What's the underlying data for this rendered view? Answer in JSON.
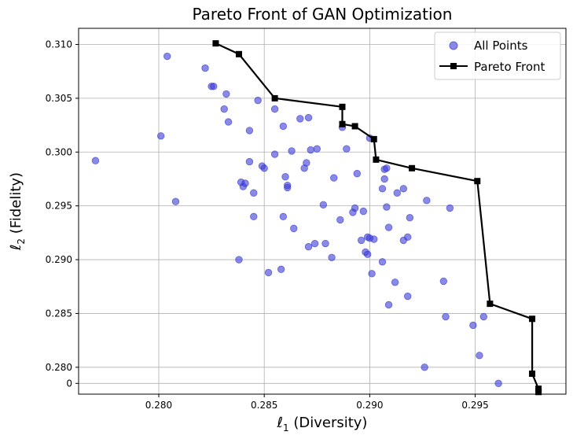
{
  "chart_data": {
    "type": "scatter",
    "title": "Pareto Front of GAN Optimization",
    "xlabel": "ℓ1 (Diversity)",
    "ylabel": "ℓ2 (Fidelity)",
    "xlabel_parts": {
      "symbol": "ℓ",
      "sub": "1",
      "rest": " (Diversity)"
    },
    "ylabel_parts": {
      "symbol": "ℓ",
      "sub": "2",
      "rest": " (Fidelity)"
    },
    "xlim": [
      0.2762,
      0.2993
    ],
    "y_break": {
      "below_label": 0.279,
      "at": 0.0
    },
    "ylim": [
      0.2775,
      0.3115
    ],
    "grid": true,
    "legend_position": "top-right",
    "x_ticks": [
      "0.280",
      "0.285",
      "0.290",
      "0.295"
    ],
    "x_tick_values": [
      0.28,
      0.285,
      0.29,
      0.295
    ],
    "y_ticks": [
      "0",
      "0.280",
      "0.285",
      "0.290",
      "0.295",
      "0.300",
      "0.305",
      "0.310"
    ],
    "y_tick_values": [
      0.2785,
      0.28,
      0.285,
      0.29,
      0.295,
      0.3,
      0.305,
      0.31
    ],
    "series": [
      {
        "name": "All Points",
        "kind": "scatter",
        "color": "#3b3bd6",
        "points": [
          [
            0.277,
            0.2992
          ],
          [
            0.2801,
            0.3015
          ],
          [
            0.2804,
            0.3089
          ],
          [
            0.2808,
            0.2954
          ],
          [
            0.2822,
            0.3078
          ],
          [
            0.2825,
            0.3061
          ],
          [
            0.2826,
            0.3061
          ],
          [
            0.2831,
            0.304
          ],
          [
            0.2832,
            0.3054
          ],
          [
            0.2833,
            0.3028
          ],
          [
            0.2838,
            0.29
          ],
          [
            0.2839,
            0.2972
          ],
          [
            0.284,
            0.2968
          ],
          [
            0.2841,
            0.2971
          ],
          [
            0.2843,
            0.2991
          ],
          [
            0.2843,
            0.302
          ],
          [
            0.2845,
            0.2962
          ],
          [
            0.2845,
            0.294
          ],
          [
            0.2847,
            0.3048
          ],
          [
            0.2849,
            0.2987
          ],
          [
            0.285,
            0.2985
          ],
          [
            0.2852,
            0.2888
          ],
          [
            0.2855,
            0.304
          ],
          [
            0.2855,
            0.2998
          ],
          [
            0.2858,
            0.2891
          ],
          [
            0.2859,
            0.294
          ],
          [
            0.2859,
            0.3024
          ],
          [
            0.286,
            0.2977
          ],
          [
            0.2861,
            0.2969
          ],
          [
            0.2861,
            0.2967
          ],
          [
            0.2863,
            0.3001
          ],
          [
            0.2864,
            0.2929
          ],
          [
            0.2867,
            0.3031
          ],
          [
            0.2869,
            0.2985
          ],
          [
            0.287,
            0.299
          ],
          [
            0.2871,
            0.3032
          ],
          [
            0.2871,
            0.2912
          ],
          [
            0.2872,
            0.3002
          ],
          [
            0.2874,
            0.2915
          ],
          [
            0.2875,
            0.3003
          ],
          [
            0.2878,
            0.2951
          ],
          [
            0.2879,
            0.2915
          ],
          [
            0.2882,
            0.2902
          ],
          [
            0.2883,
            0.2976
          ],
          [
            0.2886,
            0.2937
          ],
          [
            0.2887,
            0.3023
          ],
          [
            0.2889,
            0.3003
          ],
          [
            0.2892,
            0.2944
          ],
          [
            0.2893,
            0.2948
          ],
          [
            0.2894,
            0.298
          ],
          [
            0.2896,
            0.2918
          ],
          [
            0.2897,
            0.2945
          ],
          [
            0.2898,
            0.2907
          ],
          [
            0.2899,
            0.2905
          ],
          [
            0.2899,
            0.2921
          ],
          [
            0.29,
            0.292
          ],
          [
            0.29,
            0.3013
          ],
          [
            0.2901,
            0.2887
          ],
          [
            0.2902,
            0.2919
          ],
          [
            0.2906,
            0.2898
          ],
          [
            0.2906,
            0.2966
          ],
          [
            0.2907,
            0.2975
          ],
          [
            0.2907,
            0.2984
          ],
          [
            0.2908,
            0.2985
          ],
          [
            0.2908,
            0.2949
          ],
          [
            0.2909,
            0.293
          ],
          [
            0.2909,
            0.2858
          ],
          [
            0.2912,
            0.2879
          ],
          [
            0.2913,
            0.2962
          ],
          [
            0.2916,
            0.2966
          ],
          [
            0.2916,
            0.2918
          ],
          [
            0.2918,
            0.2921
          ],
          [
            0.2918,
            0.2866
          ],
          [
            0.2919,
            0.2939
          ],
          [
            0.2926,
            0.28
          ],
          [
            0.2927,
            0.2955
          ],
          [
            0.2935,
            0.288
          ],
          [
            0.2936,
            0.2847
          ],
          [
            0.2938,
            0.2948
          ],
          [
            0.2949,
            0.2839
          ],
          [
            0.2952,
            0.2811
          ],
          [
            0.2954,
            0.2847
          ],
          [
            0.2961,
            0.2785
          ]
        ]
      },
      {
        "name": "Pareto Front",
        "kind": "line",
        "color": "#000000",
        "points": [
          [
            0.2827,
            0.3101
          ],
          [
            0.2838,
            0.3091
          ],
          [
            0.2855,
            0.305
          ],
          [
            0.2887,
            0.3042
          ],
          [
            0.2887,
            0.3026
          ],
          [
            0.2893,
            0.3024
          ],
          [
            0.2902,
            0.3012
          ],
          [
            0.2903,
            0.2993
          ],
          [
            0.292,
            0.2985
          ],
          [
            0.2951,
            0.2973
          ],
          [
            0.2957,
            0.2859
          ],
          [
            0.2977,
            0.2845
          ],
          [
            0.2977,
            0.2794
          ],
          [
            0.298,
            0.278
          ],
          [
            0.298,
            0.2777
          ]
        ]
      }
    ]
  }
}
